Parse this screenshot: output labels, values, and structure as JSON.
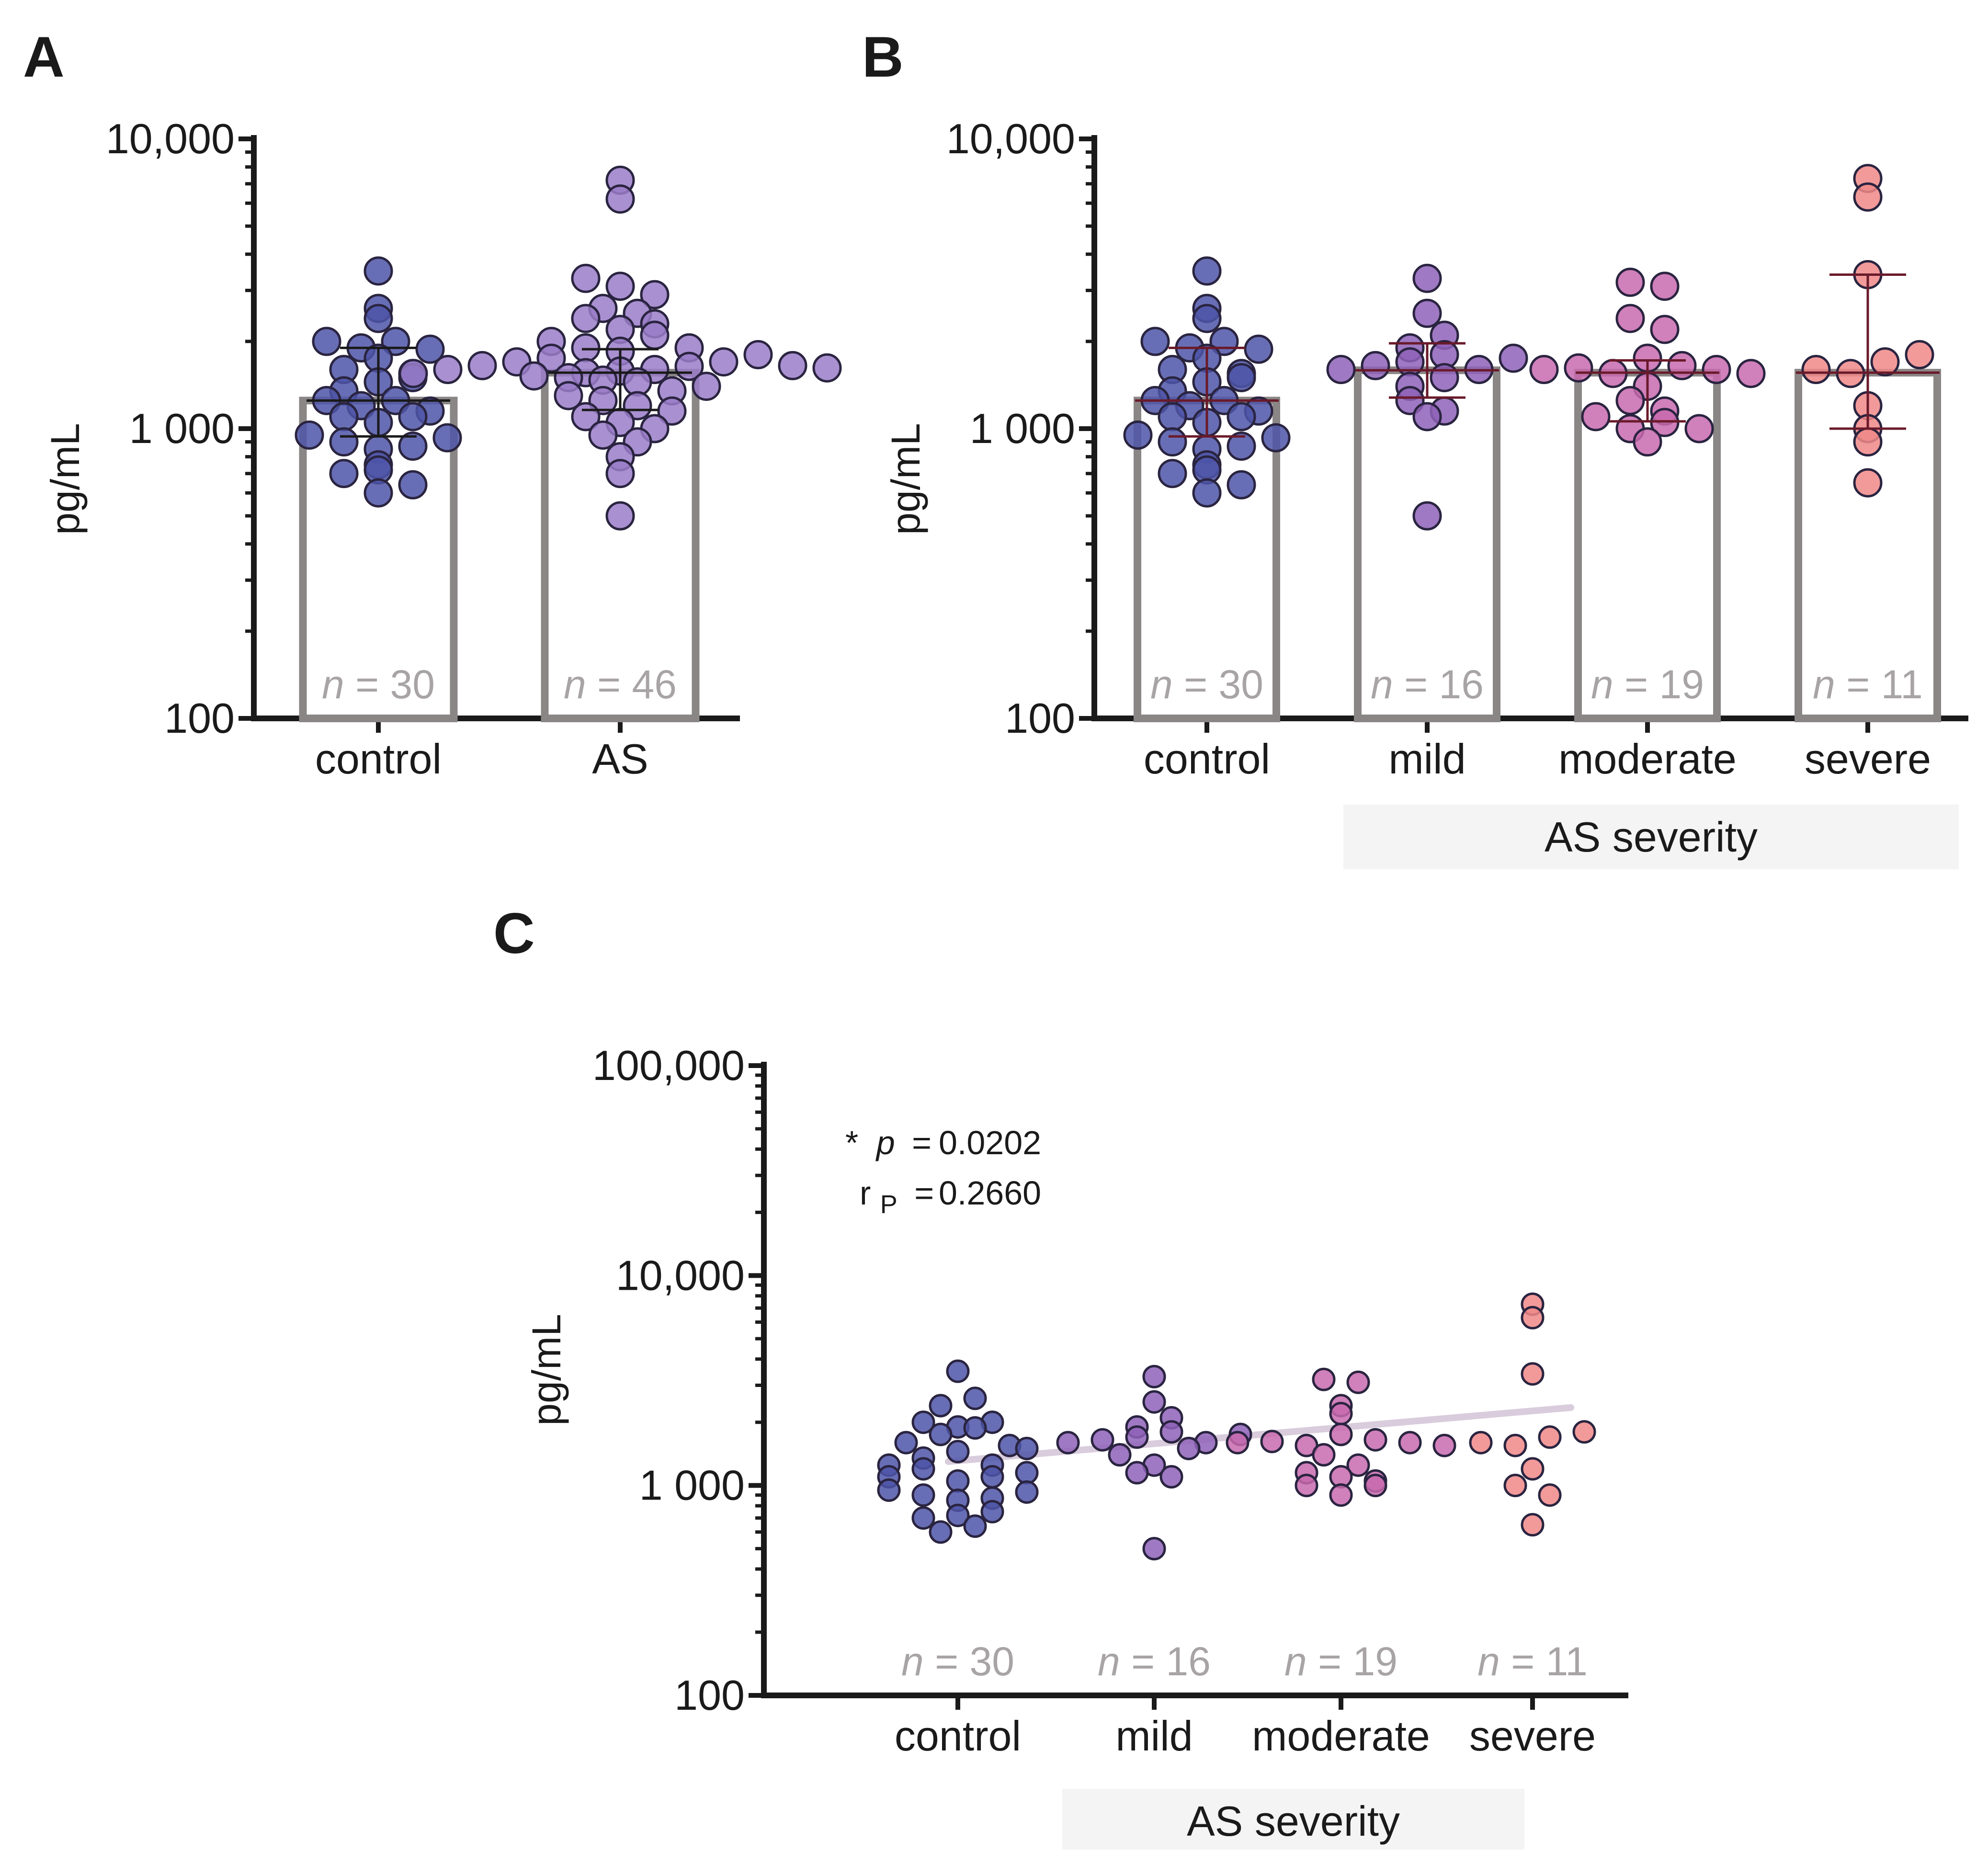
{
  "chart_data": [
    {
      "panel": "A",
      "type": "bar",
      "ylabel": "pg/mL",
      "yscale": "log",
      "ylim": [
        100,
        10000
      ],
      "yticks": [
        "100",
        "1 000",
        "10,000"
      ],
      "categories": [
        "control",
        "AS"
      ],
      "n_labels": [
        "30",
        "46"
      ],
      "bar_values": [
        1250,
        1560
      ],
      "error": [
        [
          940,
          1900
        ],
        [
          1160,
          1880
        ]
      ],
      "colors": [
        "#4d55a8",
        "#9a7cc8"
      ],
      "points": [
        [
          2000,
          1250,
          1100,
          950,
          900,
          1600,
          1350,
          2400,
          1750,
          1200,
          1050,
          850,
          700,
          600,
          3500,
          2600,
          1900,
          1450,
          1250,
          1100,
          870,
          720,
          2000,
          1500,
          1150,
          930,
          750,
          640,
          1880,
          1550
        ],
        [
          1550,
          1600,
          1650,
          1700,
          1750,
          1560,
          1580,
          1600,
          1640,
          1700,
          1800,
          1520,
          1500,
          1470,
          1450,
          2400,
          2200,
          2000,
          1900,
          1850,
          1350,
          1300,
          1250,
          1200,
          1150,
          1100,
          1050,
          1000,
          950,
          900,
          800,
          700,
          500,
          3300,
          3100,
          2900,
          2600,
          2500,
          2300,
          2100,
          1900,
          6200,
          7200,
          1650,
          1400,
          1620
        ]
      ]
    },
    {
      "panel": "B",
      "type": "bar",
      "ylabel": "pg/mL",
      "yscale": "log",
      "ylim": [
        100,
        10000
      ],
      "yticks": [
        "100",
        "1 000",
        "10,000"
      ],
      "categories": [
        "control",
        "mild",
        "moderate",
        "severe"
      ],
      "bracket_label": "AS severity",
      "n_labels": [
        "30",
        "16",
        "19",
        "11"
      ],
      "bar_values": [
        1250,
        1590,
        1560,
        1560
      ],
      "error": [
        [
          940,
          1900
        ],
        [
          1280,
          1970
        ],
        [
          1060,
          1720
        ],
        [
          1000,
          3400
        ]
      ],
      "colors": [
        "#4d55a8",
        "#8e62b8",
        "#c86aae",
        "#f08888"
      ],
      "points": [
        [
          2000,
          1250,
          1100,
          950,
          900,
          1600,
          1350,
          2400,
          1750,
          1200,
          1050,
          850,
          700,
          600,
          3500,
          2600,
          1900,
          1450,
          1250,
          1100,
          870,
          720,
          2000,
          1500,
          1150,
          930,
          750,
          640,
          1880,
          1550
        ],
        [
          1600,
          1650,
          1700,
          1800,
          2500,
          1900,
          1600,
          1400,
          1250,
          1150,
          1100,
          3300,
          2100,
          1750,
          1500,
          500
        ],
        [
          1600,
          1620,
          1550,
          1400,
          1250,
          1150,
          1100,
          1000,
          900,
          3200,
          3100,
          2400,
          2200,
          1750,
          1650,
          1600,
          1550,
          1050,
          1000
        ],
        [
          1600,
          1550,
          1700,
          1800,
          3400,
          6300,
          7300,
          1200,
          1000,
          900,
          650
        ]
      ]
    },
    {
      "panel": "C",
      "type": "scatter",
      "ylabel": "pg/mL",
      "yscale": "log",
      "ylim": [
        100,
        100000
      ],
      "yticks": [
        "100",
        "1 000",
        "10,000",
        "100,000"
      ],
      "categories": [
        "control",
        "mild",
        "moderate",
        "severe"
      ],
      "bracket_label": "AS severity",
      "n_labels": [
        "30",
        "16",
        "19",
        "11"
      ],
      "colors": [
        "#4d55a8",
        "#8e62b8",
        "#c86aae",
        "#f08888"
      ],
      "trend_line": {
        "start": 1300,
        "end": 2350,
        "color": "#d9ccdc"
      },
      "points": [
        [
          2000,
          1250,
          1100,
          950,
          900,
          1600,
          1350,
          2400,
          1750,
          1200,
          1050,
          850,
          700,
          600,
          3500,
          2600,
          1900,
          1450,
          1250,
          1100,
          870,
          720,
          2000,
          1500,
          1150,
          930,
          750,
          640,
          1880,
          1550
        ],
        [
          1600,
          1650,
          1700,
          1800,
          2500,
          1900,
          1600,
          1400,
          1250,
          1150,
          1100,
          3300,
          2100,
          1750,
          1500,
          500
        ],
        [
          1600,
          1620,
          1550,
          1400,
          1250,
          1150,
          1100,
          1000,
          900,
          3200,
          3100,
          2400,
          2200,
          1750,
          1650,
          1600,
          1550,
          1050,
          1000
        ],
        [
          1600,
          1550,
          1700,
          1800,
          3400,
          6300,
          7300,
          1200,
          1000,
          900,
          650
        ]
      ],
      "stats": {
        "p_prefix": "*",
        "p_symbol": "p",
        "p_eq": "=",
        "p_value": "0.0202",
        "r_symbol": "r",
        "r_sub": "P",
        "r_eq": "=",
        "r_value": "0.2660"
      }
    }
  ],
  "labels": {
    "panel_a": "A",
    "panel_b": "B",
    "panel_c": "C",
    "n_prefix": "n",
    "n_eq": "= "
  }
}
